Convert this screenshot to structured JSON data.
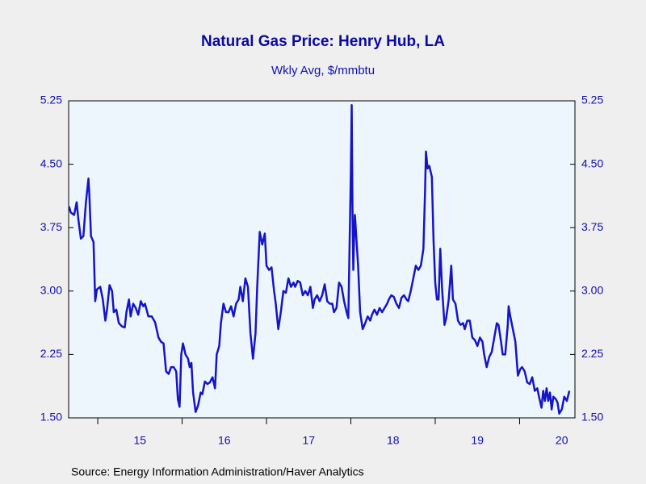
{
  "chart_data": {
    "type": "line",
    "title": "Natural Gas Price: Henry Hub, LA",
    "subtitle": "Wkly Avg, $/mmbtu",
    "source": "Source:  Energy Information Administration/Haver Analytics",
    "xlim": [
      2014.655,
      2020.656
    ],
    "xticks": [
      {
        "value": 2015,
        "label": "15"
      },
      {
        "value": 2016,
        "label": "16"
      },
      {
        "value": 2017,
        "label": "17"
      },
      {
        "value": 2018,
        "label": "18"
      },
      {
        "value": 2019,
        "label": "19"
      },
      {
        "value": 2020,
        "label": "20"
      }
    ],
    "ylim": [
      1.5,
      5.25
    ],
    "yticks": [
      {
        "value": 1.5,
        "label": "1.50"
      },
      {
        "value": 2.25,
        "label": "2.25"
      },
      {
        "value": 3,
        "label": "3.00"
      },
      {
        "value": 3.75,
        "label": "3.75"
      },
      {
        "value": 4.5,
        "label": "4.50"
      },
      {
        "value": 5.25,
        "label": "5.25"
      }
    ],
    "x": [
      2014.66,
      2014.68,
      2014.72,
      2014.75,
      2014.77,
      2014.8,
      2014.83,
      2014.86,
      2014.89,
      2014.9,
      2014.92,
      2014.95,
      2014.97,
      2014.99,
      2015.03,
      2015.06,
      2015.09,
      2015.11,
      2015.14,
      2015.17,
      2015.19,
      2015.22,
      2015.25,
      2015.29,
      2015.32,
      2015.34,
      2015.37,
      2015.39,
      2015.42,
      2015.45,
      2015.48,
      2015.51,
      2015.54,
      2015.56,
      2015.6,
      2015.64,
      2015.68,
      2015.72,
      2015.75,
      2015.78,
      2015.81,
      2015.84,
      2015.87,
      2015.9,
      2015.93,
      2015.95,
      2015.97,
      2015.99,
      2016.01,
      2016.04,
      2016.07,
      2016.09,
      2016.11,
      2016.13,
      2016.16,
      2016.19,
      2016.22,
      2016.24,
      2016.27,
      2016.3,
      2016.33,
      2016.36,
      2016.39,
      2016.41,
      2016.44,
      2016.46,
      2016.49,
      2016.52,
      2016.55,
      2016.58,
      2016.61,
      2016.64,
      2016.67,
      2016.69,
      2016.72,
      2016.75,
      2016.78,
      2016.81,
      2016.84,
      2016.87,
      2016.89,
      2016.92,
      2016.95,
      2016.98,
      2017.0,
      2017.03,
      2017.06,
      2017.09,
      2017.11,
      2017.14,
      2017.17,
      2017.2,
      2017.23,
      2017.26,
      2017.29,
      2017.32,
      2017.34,
      2017.37,
      2017.4,
      2017.43,
      2017.46,
      2017.49,
      2017.52,
      2017.55,
      2017.57,
      2017.6,
      2017.63,
      2017.66,
      2017.69,
      2017.72,
      2017.75,
      2017.78,
      2017.8,
      2017.83,
      2017.86,
      2017.89,
      2017.92,
      2017.95,
      2017.97,
      2018.0,
      2018.01,
      2018.019,
      2018.029,
      2018.038,
      2018.048,
      2018.067,
      2018.086,
      2018.11,
      2018.14,
      2018.17,
      2018.2,
      2018.23,
      2018.25,
      2018.28,
      2018.31,
      2018.34,
      2018.37,
      2018.4,
      2018.43,
      2018.45,
      2018.48,
      2018.51,
      2018.54,
      2018.57,
      2018.6,
      2018.63,
      2018.66,
      2018.68,
      2018.71,
      2018.74,
      2018.77,
      2018.8,
      2018.83,
      2018.86,
      2018.88,
      2018.89,
      2018.91,
      2018.93,
      2018.96,
      2018.98,
      2019.0,
      2019.02,
      2019.04,
      2019.06,
      2019.08,
      2019.11,
      2019.13,
      2019.16,
      2019.19,
      2019.21,
      2019.24,
      2019.27,
      2019.3,
      2019.33,
      2019.35,
      2019.38,
      2019.41,
      2019.44,
      2019.47,
      2019.5,
      2019.53,
      2019.56,
      2019.58,
      2019.61,
      2019.64,
      2019.67,
      2019.7,
      2019.73,
      2019.75,
      2019.78,
      2019.8,
      2019.83,
      2019.86,
      2019.87,
      2019.89,
      2019.92,
      2019.95,
      2019.98,
      2020.01,
      2020.03,
      2020.06,
      2020.09,
      2020.12,
      2020.15,
      2020.18,
      2020.21,
      2020.23,
      2020.26,
      2020.28,
      2020.3,
      2020.32,
      2020.34,
      2020.36,
      2020.38,
      2020.4,
      2020.43,
      2020.45,
      2020.47,
      2020.5,
      2020.53,
      2020.56,
      2020.59
    ],
    "series": [
      {
        "name": "Henry Hub",
        "color": "#1414c8",
        "values": [
          4.0,
          3.93,
          3.9,
          4.05,
          3.85,
          3.62,
          3.65,
          4.05,
          4.33,
          4.15,
          3.65,
          3.58,
          2.88,
          3.02,
          3.05,
          2.9,
          2.65,
          2.78,
          3.07,
          3.0,
          2.75,
          2.78,
          2.62,
          2.58,
          2.57,
          2.75,
          2.9,
          2.7,
          2.85,
          2.8,
          2.72,
          2.88,
          2.82,
          2.85,
          2.7,
          2.7,
          2.63,
          2.45,
          2.4,
          2.38,
          2.05,
          2.02,
          2.1,
          2.1,
          2.05,
          1.72,
          1.63,
          2.25,
          2.38,
          2.25,
          2.2,
          2.1,
          2.15,
          1.8,
          1.57,
          1.65,
          1.8,
          1.78,
          1.93,
          1.9,
          1.92,
          1.98,
          1.85,
          2.25,
          2.35,
          2.62,
          2.85,
          2.75,
          2.75,
          2.82,
          2.7,
          2.85,
          2.9,
          3.05,
          2.88,
          3.15,
          3.05,
          2.5,
          2.2,
          2.5,
          3.05,
          3.7,
          3.55,
          3.68,
          3.3,
          3.25,
          3.28,
          3.0,
          2.85,
          2.55,
          2.75,
          3.0,
          2.98,
          3.15,
          3.05,
          3.1,
          3.05,
          3.12,
          3.1,
          2.95,
          3.0,
          2.95,
          3.05,
          2.8,
          2.9,
          2.95,
          2.88,
          2.95,
          3.08,
          2.88,
          2.85,
          2.85,
          2.75,
          2.8,
          3.1,
          3.05,
          2.88,
          2.75,
          2.68,
          4.4,
          5.2,
          4.0,
          3.25,
          3.6,
          3.9,
          3.6,
          3.3,
          2.75,
          2.55,
          2.62,
          2.7,
          2.65,
          2.72,
          2.78,
          2.72,
          2.8,
          2.75,
          2.8,
          2.85,
          2.9,
          2.95,
          2.93,
          2.85,
          2.8,
          2.92,
          2.95,
          2.9,
          2.88,
          3.0,
          3.15,
          3.3,
          3.25,
          3.3,
          3.5,
          4.2,
          4.65,
          4.45,
          4.48,
          4.35,
          3.6,
          3.1,
          2.9,
          2.9,
          3.5,
          3.05,
          2.6,
          2.68,
          2.9,
          3.3,
          2.9,
          2.85,
          2.65,
          2.6,
          2.62,
          2.55,
          2.65,
          2.65,
          2.45,
          2.42,
          2.35,
          2.45,
          2.4,
          2.25,
          2.1,
          2.22,
          2.28,
          2.45,
          2.62,
          2.6,
          2.4,
          2.25,
          2.25,
          2.6,
          2.82,
          2.7,
          2.55,
          2.4,
          2.0,
          2.08,
          2.1,
          2.05,
          1.92,
          1.9,
          1.98,
          1.82,
          1.85,
          1.75,
          1.62,
          1.82,
          1.7,
          1.85,
          1.7,
          1.8,
          1.6,
          1.75,
          1.72,
          1.68,
          1.55,
          1.6,
          1.75,
          1.7,
          1.82
        ]
      }
    ]
  }
}
